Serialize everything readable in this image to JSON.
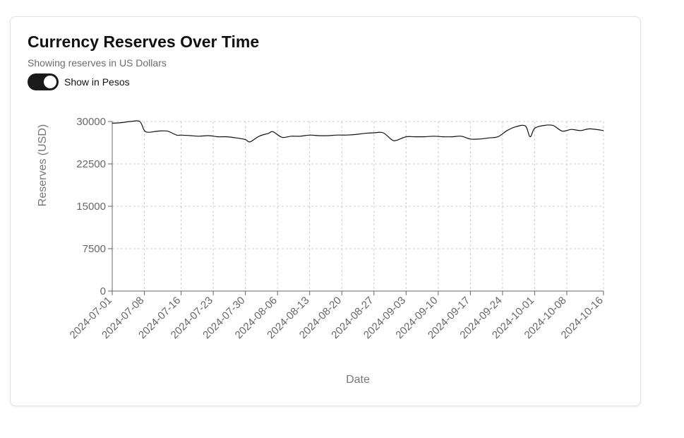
{
  "header": {
    "title": "Currency Reserves Over Time",
    "subtitle": "Showing reserves in US Dollars"
  },
  "toggle": {
    "label": "Show in Pesos",
    "on": true
  },
  "colors": {
    "line": "#111111",
    "grid": "#cccccc",
    "axis": "#666666",
    "toggle_on": "#1a1a1a"
  },
  "chart_data": {
    "type": "line",
    "title": "",
    "xlabel": "Date",
    "ylabel": "Reserves (USD)",
    "ylim": [
      0,
      30000
    ],
    "y_ticks": [
      0,
      7500,
      15000,
      22500,
      30000
    ],
    "x_ticks": [
      "2024-07-01",
      "2024-07-08",
      "2024-07-16",
      "2024-07-23",
      "2024-07-30",
      "2024-08-06",
      "2024-08-13",
      "2024-08-20",
      "2024-08-27",
      "2024-09-03",
      "2024-09-10",
      "2024-09-17",
      "2024-09-24",
      "2024-10-01",
      "2024-10-08",
      "2024-10-16"
    ],
    "grid": true,
    "x_range": [
      "2024-07-01",
      "2024-10-16"
    ],
    "series": [
      {
        "name": "",
        "x": [
          "2024-07-01",
          "2024-07-03",
          "2024-07-05",
          "2024-07-07",
          "2024-07-08",
          "2024-07-09",
          "2024-07-11",
          "2024-07-13",
          "2024-07-15",
          "2024-07-16",
          "2024-07-18",
          "2024-07-20",
          "2024-07-22",
          "2024-07-24",
          "2024-07-26",
          "2024-07-28",
          "2024-07-30",
          "2024-07-31",
          "2024-08-02",
          "2024-08-04",
          "2024-08-05",
          "2024-08-07",
          "2024-08-09",
          "2024-08-11",
          "2024-08-13",
          "2024-08-15",
          "2024-08-17",
          "2024-08-19",
          "2024-08-21",
          "2024-08-23",
          "2024-08-25",
          "2024-08-27",
          "2024-08-29",
          "2024-08-31",
          "2024-09-01",
          "2024-09-03",
          "2024-09-05",
          "2024-09-07",
          "2024-09-09",
          "2024-09-11",
          "2024-09-13",
          "2024-09-15",
          "2024-09-17",
          "2024-09-19",
          "2024-09-21",
          "2024-09-23",
          "2024-09-25",
          "2024-09-27",
          "2024-09-29",
          "2024-09-30",
          "2024-10-01",
          "2024-10-03",
          "2024-10-05",
          "2024-10-07",
          "2024-10-09",
          "2024-10-11",
          "2024-10-13",
          "2024-10-16"
        ],
        "values": [
          29700,
          29800,
          30000,
          30000,
          28400,
          28100,
          28300,
          28300,
          27600,
          27600,
          27500,
          27400,
          27500,
          27300,
          27300,
          27100,
          26800,
          26400,
          27400,
          27900,
          28200,
          27200,
          27400,
          27400,
          27600,
          27500,
          27500,
          27600,
          27600,
          27700,
          27900,
          28000,
          28000,
          26700,
          26700,
          27300,
          27300,
          27300,
          27400,
          27300,
          27300,
          27400,
          26900,
          26900,
          27100,
          27300,
          28400,
          29100,
          29200,
          27300,
          28800,
          29300,
          29300,
          28300,
          28600,
          28400,
          28700,
          28400
        ]
      }
    ]
  }
}
